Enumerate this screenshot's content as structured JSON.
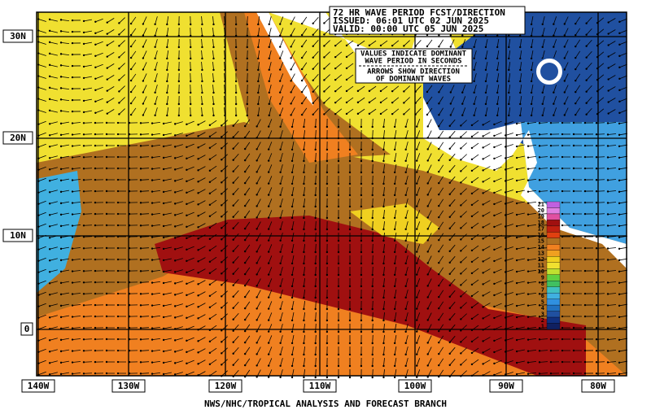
{
  "header": {
    "lines": [
      "72 HR WAVE PERIOD FCST/DIRECTION",
      "ISSUED: 06:01 UTC 02 JUN 2025",
      "VALID:  00:00 UTC 05 JUN 2025"
    ]
  },
  "legend": {
    "lines": [
      "VALUES INDICATE DOMINANT",
      "WAVE PERIOD IN SECONDS",
      "ARROWS SHOW DIRECTION",
      "OF DOMINANT WAVES"
    ]
  },
  "lat_labels": [
    "30N",
    "20N",
    "10N",
    "0"
  ],
  "lon_labels": [
    "140W",
    "130W",
    "120W",
    "110W",
    "100W",
    "90W",
    "80W"
  ],
  "footer": "NWS/NHC/TROPICAL ANALYSIS AND FORECAST BRANCH",
  "scale": {
    "values": [
      21,
      20,
      19,
      18,
      17,
      16,
      15,
      14,
      13,
      12,
      11,
      10,
      9,
      8,
      7,
      6,
      5,
      4,
      3,
      2,
      1
    ],
    "colors": [
      "#c060e0",
      "#e080e0",
      "#e050a0",
      "#a01010",
      "#c02010",
      "#e04010",
      "#b07020",
      "#f08020",
      "#f0a020",
      "#f0d020",
      "#f0e030",
      "#c0e030",
      "#60d040",
      "#40c060",
      "#40c0c0",
      "#40b0e0",
      "#3090e0",
      "#2070c0",
      "#2050a0",
      "#103080",
      "#102060"
    ]
  }
}
